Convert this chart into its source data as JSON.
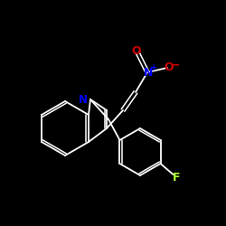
{
  "bg_color": "#000000",
  "bond_color": "#ffffff",
  "atom_colors": {
    "N_nitro": "#0000ff",
    "O": "#cc0000",
    "N_indole": "#0000ff",
    "F": "#adff2f"
  },
  "figsize": [
    2.5,
    2.5
  ],
  "dpi": 100
}
